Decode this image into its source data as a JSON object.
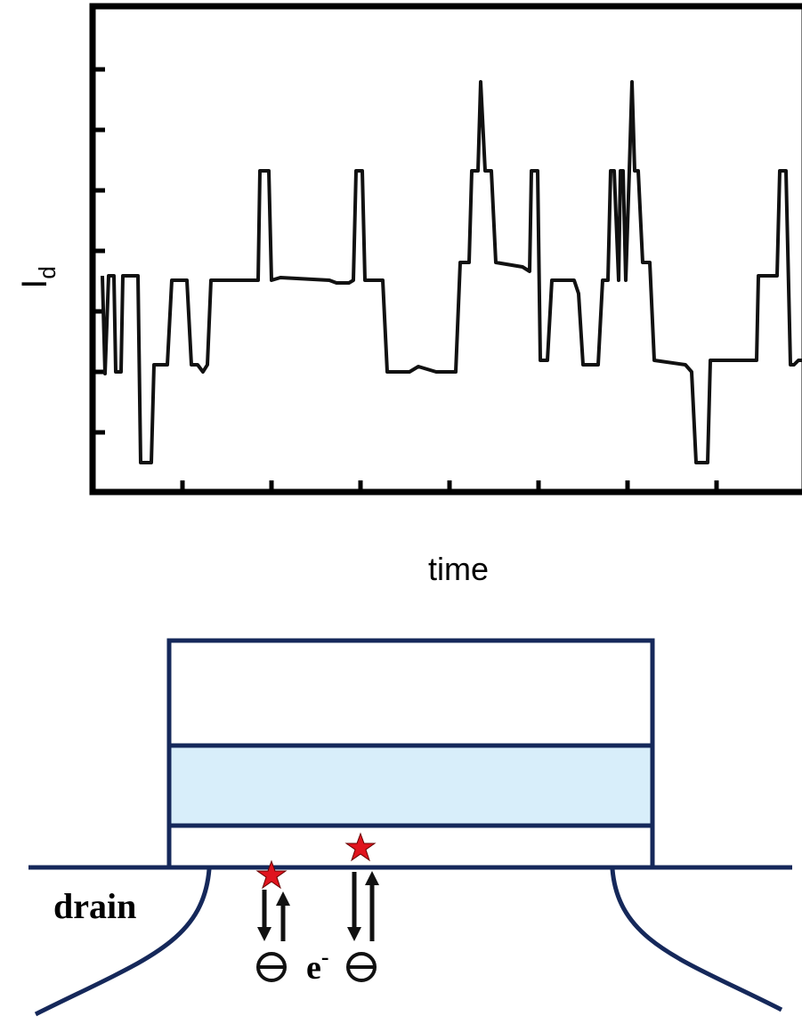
{
  "plot": {
    "y_label": {
      "main": "I",
      "sub": "d"
    },
    "x_label": "time"
  },
  "device": {
    "region_label": "drain",
    "carrier": {
      "main": "e",
      "sup": "-"
    }
  }
}
